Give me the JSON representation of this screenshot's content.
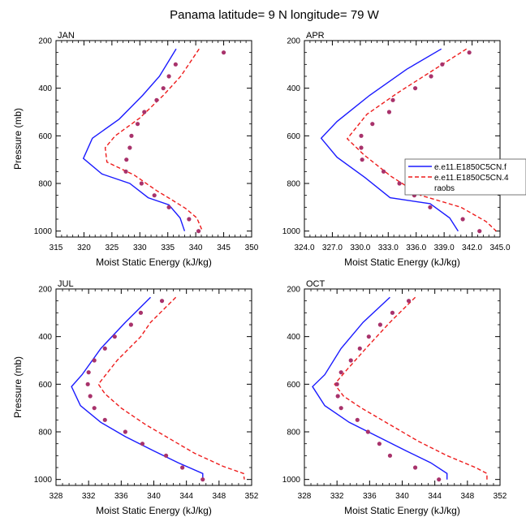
{
  "figure_title": "Panama  latitude= 9 N longitude= 79 W",
  "chart_data": [
    {
      "type": "line",
      "panel": "JAN",
      "xlabel": "Moist Static Energy (kJ/kg)",
      "ylabel": "Pressure (mb)",
      "xlim": [
        315,
        350
      ],
      "ylim": [
        1025,
        200
      ],
      "xticks": [
        315,
        320,
        325,
        330,
        335,
        340,
        345,
        350
      ],
      "xtick_labels": [
        "315",
        "320",
        "325",
        "330",
        "335",
        "340",
        "345",
        "350"
      ],
      "yticks": [
        200,
        400,
        600,
        800,
        1000
      ],
      "y_reversed": true,
      "series": [
        {
          "style": "solid",
          "color": "#1a1aff",
          "points": [
            [
              336.5,
              235
            ],
            [
              333.5,
              350
            ],
            [
              330.5,
              430
            ],
            [
              326.3,
              530
            ],
            [
              321.5,
              610
            ],
            [
              319.9,
              695
            ],
            [
              323.2,
              760
            ],
            [
              328.2,
              800
            ],
            [
              331.5,
              860
            ],
            [
              335.2,
              890
            ],
            [
              337.2,
              945
            ],
            [
              338.0,
              1000
            ]
          ]
        },
        {
          "style": "dashed",
          "color": "#ee1c1c",
          "points": [
            [
              340.6,
              235
            ],
            [
              337.3,
              350
            ],
            [
              334.2,
              430
            ],
            [
              330.0,
              525
            ],
            [
              325.6,
              600
            ],
            [
              323.8,
              650
            ],
            [
              324.1,
              710
            ],
            [
              329.0,
              765
            ],
            [
              333.0,
              830
            ],
            [
              335.8,
              870
            ],
            [
              338.2,
              905
            ],
            [
              340.2,
              945
            ],
            [
              341.2,
              1000
            ]
          ]
        },
        {
          "style": "dots",
          "name": "raobs",
          "color": "#a8326b",
          "points": [
            [
              345.0,
              250
            ],
            [
              336.4,
              300
            ],
            [
              335.2,
              350
            ],
            [
              334.2,
              400
            ],
            [
              333.0,
              450
            ],
            [
              330.8,
              500
            ],
            [
              329.6,
              550
            ],
            [
              328.5,
              600
            ],
            [
              328.2,
              650
            ],
            [
              327.6,
              700
            ],
            [
              327.5,
              750
            ],
            [
              330.3,
              800
            ],
            [
              332.6,
              850
            ],
            [
              335.2,
              900
            ],
            [
              338.8,
              950
            ],
            [
              340.5,
              1000
            ]
          ]
        }
      ]
    },
    {
      "type": "line",
      "panel": "APR",
      "xlabel": "Moist Static Energy (kJ/kg)",
      "ylabel": "",
      "xlim": [
        324,
        345
      ],
      "ylim": [
        1025,
        200
      ],
      "xticks": [
        324,
        327,
        330,
        333,
        336,
        339,
        342,
        345
      ],
      "xtick_labels": [
        "324.0",
        "327.0",
        "330.0",
        "333.0",
        "336.0",
        "339.0",
        "342.0",
        "345.0"
      ],
      "yticks": [
        200,
        400,
        600,
        800,
        1000
      ],
      "y_reversed": true,
      "series": [
        {
          "style": "solid",
          "name": "e.e11.E1850C5CN.f",
          "color": "#1a1aff",
          "points": [
            [
              338.7,
              235
            ],
            [
              335.0,
              320
            ],
            [
              331.0,
              430
            ],
            [
              327.5,
              540
            ],
            [
              325.8,
              610
            ],
            [
              327.5,
              690
            ],
            [
              330.5,
              775
            ],
            [
              333.2,
              860
            ],
            [
              337.5,
              885
            ],
            [
              339.6,
              945
            ],
            [
              340.5,
              1000
            ]
          ]
        },
        {
          "style": "dashed",
          "name": "e.e11.E1850C5CN.4",
          "color": "#ee1c1c",
          "points": [
            [
              341.4,
              235
            ],
            [
              337.6,
              330
            ],
            [
              334.0,
              420
            ],
            [
              330.7,
              510
            ],
            [
              328.6,
              612
            ],
            [
              330.4,
              680
            ],
            [
              333.3,
              770
            ],
            [
              336.5,
              850
            ],
            [
              340.8,
              900
            ],
            [
              343.5,
              960
            ],
            [
              344.6,
              1000
            ]
          ]
        },
        {
          "style": "dots",
          "name": "raobs",
          "color": "#a8326b",
          "points": [
            [
              341.7,
              250
            ],
            [
              338.8,
              300
            ],
            [
              337.6,
              350
            ],
            [
              335.9,
              400
            ],
            [
              333.5,
              450
            ],
            [
              333.1,
              500
            ],
            [
              331.3,
              550
            ],
            [
              330.1,
              600
            ],
            [
              330.1,
              650
            ],
            [
              330.2,
              700
            ],
            [
              332.5,
              750
            ],
            [
              334.2,
              800
            ],
            [
              335.7,
              820
            ],
            [
              335.8,
              850
            ],
            [
              337.5,
              900
            ],
            [
              341.0,
              950
            ],
            [
              342.8,
              1000
            ]
          ]
        }
      ]
    },
    {
      "type": "line",
      "panel": "JUL",
      "xlabel": "Moist Static Energy (kJ/kg)",
      "ylabel": "Pressure (mb)",
      "xlim": [
        328,
        352
      ],
      "ylim": [
        1025,
        200
      ],
      "xticks": [
        328,
        332,
        336,
        340,
        344,
        348,
        352
      ],
      "xtick_labels": [
        "328",
        "332",
        "336",
        "340",
        "344",
        "348",
        "352"
      ],
      "yticks": [
        200,
        400,
        600,
        800,
        1000
      ],
      "y_reversed": true,
      "series": [
        {
          "style": "solid",
          "color": "#1a1aff",
          "points": [
            [
              339.6,
              235
            ],
            [
              336.5,
              340
            ],
            [
              333.5,
              450
            ],
            [
              331.2,
              560
            ],
            [
              329.9,
              610
            ],
            [
              331.0,
              690
            ],
            [
              333.5,
              760
            ],
            [
              336.5,
              820
            ],
            [
              340.0,
              880
            ],
            [
              343.0,
              930
            ],
            [
              346.0,
              975
            ],
            [
              346.0,
              1000
            ]
          ]
        },
        {
          "style": "dashed",
          "color": "#ee1c1c",
          "points": [
            [
              342.7,
              235
            ],
            [
              339.6,
              340
            ],
            [
              338.4,
              400
            ],
            [
              335.5,
              500
            ],
            [
              333.2,
              600
            ],
            [
              334.0,
              640
            ],
            [
              336.0,
              700
            ],
            [
              339.0,
              770
            ],
            [
              342.0,
              830
            ],
            [
              345.0,
              890
            ],
            [
              348.5,
              945
            ],
            [
              351.0,
              975
            ],
            [
              351.1,
              1000
            ]
          ]
        },
        {
          "style": "dots",
          "name": "raobs",
          "color": "#a8326b",
          "points": [
            [
              341.0,
              250
            ],
            [
              338.4,
              300
            ],
            [
              337.2,
              350
            ],
            [
              335.2,
              400
            ],
            [
              334.0,
              450
            ],
            [
              332.7,
              500
            ],
            [
              332.0,
              550
            ],
            [
              331.9,
              600
            ],
            [
              332.2,
              650
            ],
            [
              332.7,
              700
            ],
            [
              334.0,
              750
            ],
            [
              336.5,
              800
            ],
            [
              338.6,
              850
            ],
            [
              341.5,
              900
            ],
            [
              343.5,
              950
            ],
            [
              346.0,
              1000
            ]
          ]
        }
      ]
    },
    {
      "type": "line",
      "panel": "OCT",
      "xlabel": "Moist Static Energy (kJ/kg)",
      "ylabel": "",
      "xlim": [
        328,
        352
      ],
      "ylim": [
        1025,
        200
      ],
      "xticks": [
        328,
        332,
        336,
        340,
        344,
        348,
        352
      ],
      "xtick_labels": [
        "328",
        "332",
        "336",
        "340",
        "344",
        "348",
        "352"
      ],
      "yticks": [
        200,
        400,
        600,
        800,
        1000
      ],
      "y_reversed": true,
      "series": [
        {
          "style": "solid",
          "color": "#1a1aff",
          "points": [
            [
              338.5,
              235
            ],
            [
              335.2,
              340
            ],
            [
              332.5,
              450
            ],
            [
              330.5,
              560
            ],
            [
              329.0,
              610
            ],
            [
              330.5,
              690
            ],
            [
              333.5,
              760
            ],
            [
              337.0,
              820
            ],
            [
              340.5,
              880
            ],
            [
              343.5,
              930
            ],
            [
              345.5,
              975
            ],
            [
              345.5,
              1000
            ]
          ]
        },
        {
          "style": "dashed",
          "color": "#ee1c1c",
          "points": [
            [
              341.6,
              235
            ],
            [
              338.5,
              340
            ],
            [
              335.8,
              440
            ],
            [
              333.2,
              540
            ],
            [
              331.7,
              600
            ],
            [
              332.8,
              650
            ],
            [
              335.0,
              700
            ],
            [
              338.5,
              770
            ],
            [
              342.0,
              840
            ],
            [
              345.5,
              900
            ],
            [
              349.0,
              950
            ],
            [
              350.4,
              975
            ],
            [
              350.4,
              1000
            ]
          ]
        },
        {
          "style": "dots",
          "name": "raobs",
          "color": "#a8326b",
          "points": [
            [
              340.8,
              250
            ],
            [
              338.8,
              300
            ],
            [
              337.3,
              350
            ],
            [
              335.9,
              400
            ],
            [
              334.8,
              450
            ],
            [
              333.7,
              500
            ],
            [
              332.5,
              550
            ],
            [
              332.0,
              600
            ],
            [
              332.1,
              650
            ],
            [
              332.5,
              700
            ],
            [
              334.5,
              750
            ],
            [
              335.8,
              800
            ],
            [
              337.2,
              850
            ],
            [
              338.5,
              900
            ],
            [
              341.6,
              950
            ],
            [
              344.5,
              1000
            ]
          ]
        }
      ]
    }
  ]
}
